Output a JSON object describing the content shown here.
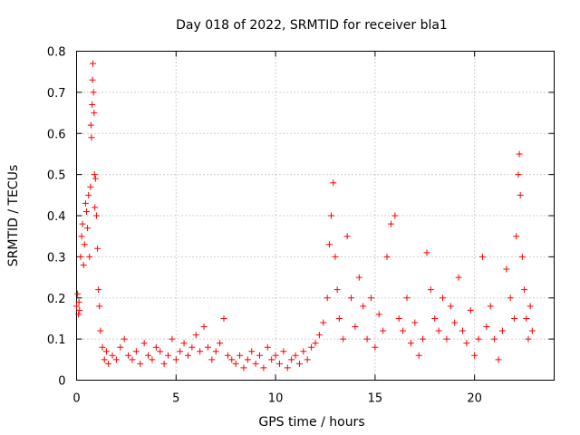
{
  "chart_data": {
    "type": "scatter",
    "title": "Day 018 of 2022, SRMTID for receiver bla1",
    "xlabel": "GPS time / hours",
    "ylabel": "SRMTID / TECUs",
    "xlim": [
      0,
      24
    ],
    "ylim": [
      0,
      0.8
    ],
    "xticks": [
      0,
      5,
      10,
      15,
      20
    ],
    "xtick_labels": [
      "0",
      "5",
      "10",
      "15",
      "20"
    ],
    "yticks": [
      0,
      0.1,
      0.2,
      0.3,
      0.4,
      0.5,
      0.6,
      0.7,
      0.8
    ],
    "ytick_labels": [
      "0",
      "0.1",
      "0.2",
      "0.3",
      "0.4",
      "0.5",
      "0.6",
      "0.7",
      "0.8"
    ],
    "grid": true,
    "marker": "+",
    "color": "#ff0000",
    "series": [
      {
        "name": "SRMTID",
        "points": [
          [
            0.0,
            0.18
          ],
          [
            0.05,
            0.21
          ],
          [
            0.1,
            0.16
          ],
          [
            0.12,
            0.19
          ],
          [
            0.15,
            0.17
          ],
          [
            0.2,
            0.3
          ],
          [
            0.25,
            0.35
          ],
          [
            0.3,
            0.38
          ],
          [
            0.35,
            0.28
          ],
          [
            0.4,
            0.33
          ],
          [
            0.45,
            0.43
          ],
          [
            0.5,
            0.41
          ],
          [
            0.55,
            0.37
          ],
          [
            0.6,
            0.45
          ],
          [
            0.65,
            0.3
          ],
          [
            0.7,
            0.47
          ],
          [
            0.72,
            0.62
          ],
          [
            0.75,
            0.59
          ],
          [
            0.78,
            0.67
          ],
          [
            0.8,
            0.73
          ],
          [
            0.82,
            0.77
          ],
          [
            0.85,
            0.7
          ],
          [
            0.88,
            0.65
          ],
          [
            0.9,
            0.5
          ],
          [
            0.92,
            0.42
          ],
          [
            0.95,
            0.49
          ],
          [
            1.0,
            0.4
          ],
          [
            1.05,
            0.32
          ],
          [
            1.1,
            0.22
          ],
          [
            1.15,
            0.18
          ],
          [
            1.2,
            0.12
          ],
          [
            1.3,
            0.08
          ],
          [
            1.4,
            0.05
          ],
          [
            1.5,
            0.07
          ],
          [
            1.6,
            0.04
          ],
          [
            1.8,
            0.06
          ],
          [
            2.0,
            0.05
          ],
          [
            2.2,
            0.08
          ],
          [
            2.4,
            0.1
          ],
          [
            2.6,
            0.06
          ],
          [
            2.8,
            0.05
          ],
          [
            3.0,
            0.07
          ],
          [
            3.2,
            0.04
          ],
          [
            3.4,
            0.09
          ],
          [
            3.6,
            0.06
          ],
          [
            3.8,
            0.05
          ],
          [
            4.0,
            0.08
          ],
          [
            4.2,
            0.07
          ],
          [
            4.4,
            0.04
          ],
          [
            4.6,
            0.06
          ],
          [
            4.8,
            0.1
          ],
          [
            5.0,
            0.05
          ],
          [
            5.2,
            0.07
          ],
          [
            5.4,
            0.09
          ],
          [
            5.6,
            0.06
          ],
          [
            5.8,
            0.08
          ],
          [
            6.0,
            0.11
          ],
          [
            6.2,
            0.07
          ],
          [
            6.4,
            0.13
          ],
          [
            6.6,
            0.08
          ],
          [
            6.8,
            0.05
          ],
          [
            7.0,
            0.07
          ],
          [
            7.2,
            0.09
          ],
          [
            7.4,
            0.15
          ],
          [
            7.6,
            0.06
          ],
          [
            7.8,
            0.05
          ],
          [
            8.0,
            0.04
          ],
          [
            8.2,
            0.06
          ],
          [
            8.4,
            0.03
          ],
          [
            8.6,
            0.05
          ],
          [
            8.8,
            0.07
          ],
          [
            9.0,
            0.04
          ],
          [
            9.2,
            0.06
          ],
          [
            9.4,
            0.03
          ],
          [
            9.6,
            0.08
          ],
          [
            9.8,
            0.05
          ],
          [
            10.0,
            0.06
          ],
          [
            10.2,
            0.04
          ],
          [
            10.4,
            0.07
          ],
          [
            10.6,
            0.03
          ],
          [
            10.8,
            0.05
          ],
          [
            11.0,
            0.06
          ],
          [
            11.2,
            0.04
          ],
          [
            11.4,
            0.07
          ],
          [
            11.6,
            0.05
          ],
          [
            11.8,
            0.08
          ],
          [
            12.0,
            0.09
          ],
          [
            12.2,
            0.11
          ],
          [
            12.4,
            0.14
          ],
          [
            12.6,
            0.2
          ],
          [
            12.7,
            0.33
          ],
          [
            12.8,
            0.4
          ],
          [
            12.9,
            0.48
          ],
          [
            13.0,
            0.3
          ],
          [
            13.1,
            0.22
          ],
          [
            13.2,
            0.15
          ],
          [
            13.4,
            0.1
          ],
          [
            13.6,
            0.35
          ],
          [
            13.8,
            0.2
          ],
          [
            14.0,
            0.13
          ],
          [
            14.2,
            0.25
          ],
          [
            14.4,
            0.18
          ],
          [
            14.6,
            0.1
          ],
          [
            14.8,
            0.2
          ],
          [
            15.0,
            0.08
          ],
          [
            15.2,
            0.16
          ],
          [
            15.4,
            0.12
          ],
          [
            15.6,
            0.3
          ],
          [
            15.8,
            0.38
          ],
          [
            16.0,
            0.4
          ],
          [
            16.2,
            0.15
          ],
          [
            16.4,
            0.12
          ],
          [
            16.6,
            0.2
          ],
          [
            16.8,
            0.09
          ],
          [
            17.0,
            0.14
          ],
          [
            17.2,
            0.06
          ],
          [
            17.4,
            0.1
          ],
          [
            17.6,
            0.31
          ],
          [
            17.8,
            0.22
          ],
          [
            18.0,
            0.15
          ],
          [
            18.2,
            0.12
          ],
          [
            18.4,
            0.2
          ],
          [
            18.6,
            0.1
          ],
          [
            18.8,
            0.18
          ],
          [
            19.0,
            0.14
          ],
          [
            19.2,
            0.25
          ],
          [
            19.4,
            0.12
          ],
          [
            19.6,
            0.09
          ],
          [
            19.8,
            0.17
          ],
          [
            20.0,
            0.06
          ],
          [
            20.2,
            0.1
          ],
          [
            20.4,
            0.3
          ],
          [
            20.6,
            0.13
          ],
          [
            20.8,
            0.18
          ],
          [
            21.0,
            0.1
          ],
          [
            21.2,
            0.05
          ],
          [
            21.4,
            0.12
          ],
          [
            21.6,
            0.27
          ],
          [
            21.8,
            0.2
          ],
          [
            22.0,
            0.15
          ],
          [
            22.1,
            0.35
          ],
          [
            22.2,
            0.5
          ],
          [
            22.25,
            0.55
          ],
          [
            22.3,
            0.45
          ],
          [
            22.4,
            0.3
          ],
          [
            22.5,
            0.22
          ],
          [
            22.6,
            0.15
          ],
          [
            22.7,
            0.1
          ],
          [
            22.8,
            0.18
          ],
          [
            22.9,
            0.12
          ]
        ]
      }
    ]
  }
}
